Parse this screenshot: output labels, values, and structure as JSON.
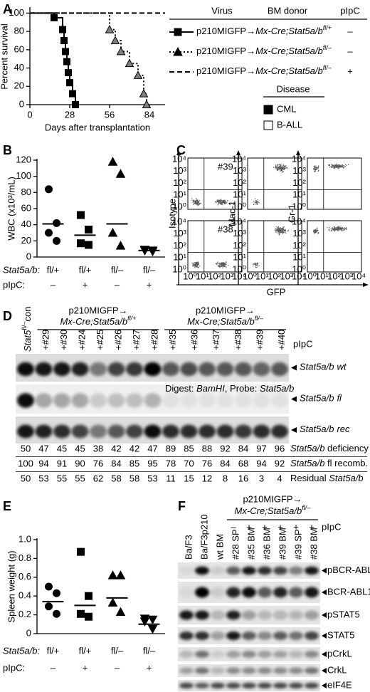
{
  "chart_data": [
    {
      "panel": "A",
      "type": "line",
      "step": true,
      "y_label": "Percent survival",
      "x_label": "Days after transplantation",
      "xlim": [
        0,
        95
      ],
      "xticks": [
        0,
        28,
        56,
        84
      ],
      "ylim": [
        0,
        105
      ],
      "yticks": [
        0,
        20,
        40,
        60,
        80,
        100
      ],
      "legend_headers": [
        "Virus",
        "BM donor",
        "pIpC"
      ],
      "series": [
        {
          "color": "#000000",
          "dash": "solid",
          "marker": "square",
          "marker_fill": "#000000",
          "virus": "p210MIGFP→",
          "donor": "Mx-Cre;Stat5a/b",
          "genotype": "fl/+",
          "pipc": "–",
          "x": [
            0,
            17,
            23,
            24,
            25,
            26,
            27,
            28,
            30,
            32
          ],
          "values": [
            100,
            95,
            82,
            70,
            58,
            47,
            35,
            24,
            12,
            0
          ]
        },
        {
          "color": "#000000",
          "dash": "dotted",
          "marker": "triangle",
          "marker_fill": "#808080",
          "virus": "p210MIGFP→",
          "donor": "Mx-Cre;Stat5a/b",
          "genotype": "fl/–",
          "pipc": "–",
          "x": [
            0,
            56,
            60,
            64,
            70,
            76,
            80,
            82
          ],
          "values": [
            100,
            82,
            70,
            58,
            45,
            32,
            12,
            0
          ]
        },
        {
          "color": "#000000",
          "dash": "dashed",
          "virus": "p210MIGFP→",
          "donor": "Mx-Cre;Stat5a/b",
          "genotype": "fl/–",
          "pipc": "+",
          "x": [
            0,
            95
          ],
          "values": [
            100,
            100
          ]
        }
      ],
      "disease_title": "Disease",
      "diseases": [
        {
          "name": "CML",
          "fill": "#000000"
        },
        {
          "name": "B-ALL",
          "fill": "#ffffff"
        }
      ]
    },
    {
      "panel": "B",
      "type": "scatter",
      "y_label": "WBC (x10³/mL)",
      "ylim": [
        0,
        120
      ],
      "yticks": [
        0,
        20,
        40,
        60,
        80,
        100,
        120
      ],
      "row_labels": [
        "Stat5a/b:",
        "pIpC:"
      ],
      "categories": [
        "fl/+",
        "fl/+",
        "fl/–",
        "fl/–"
      ],
      "treatments": [
        "–",
        "+",
        "–",
        "+"
      ],
      "series": [
        {
          "marker": "circle",
          "values": [
            84,
            42,
            30,
            20
          ],
          "mean": 41
        },
        {
          "marker": "square",
          "values": [
            52,
            34,
            17,
            15
          ],
          "mean": 27
        },
        {
          "marker": "triangle",
          "values": [
            118,
            103,
            30,
            14
          ],
          "mean": 41
        },
        {
          "marker": "down-triangle",
          "values": [
            9,
            8,
            8,
            7
          ],
          "mean": 8
        }
      ]
    },
    {
      "panel": "E",
      "type": "scatter",
      "y_label": "Spleen weight (g)",
      "ylim": [
        0,
        1
      ],
      "yticks": [
        0,
        0.2,
        0.4,
        0.6,
        0.8,
        {
          "value": 1,
          "label": "1.0"
        }
      ],
      "row_labels": [
        "Stat5a/b:",
        "pIpC:"
      ],
      "categories": [
        "fl/+",
        "fl/+",
        "fl/–",
        "fl/–"
      ],
      "treatments": [
        "–",
        "+",
        "–",
        "+"
      ],
      "series": [
        {
          "marker": "circle",
          "values": [
            0.5,
            0.43,
            0.29,
            0.21
          ],
          "mean": 0.34
        },
        {
          "marker": "square",
          "values": [
            0.87,
            0.4,
            0.21,
            0.18
          ],
          "mean": 0.3
        },
        {
          "marker": "triangle",
          "values": [
            0.62,
            0.62,
            0.33,
            0.23
          ],
          "mean": 0.38
        },
        {
          "marker": "down-triangle",
          "values": [
            0.16,
            0.15,
            0.13,
            0.05
          ],
          "mean": 0.1
        }
      ]
    }
  ],
  "panel_c": {
    "panel": "C",
    "samples": [
      "#39",
      "#38"
    ],
    "y_labels": [
      "Isotype",
      "Mac-1",
      "Gr-1"
    ],
    "x_label": "GFP",
    "decades": [
      "10⁰",
      "10¹",
      "10²",
      "10³",
      "10⁴"
    ]
  },
  "panel_d": {
    "panel": "D",
    "control": {
      "gene": "Stat5",
      "genotype": "fl/–",
      "suffix": "con"
    },
    "groups": [
      {
        "virus": "p210MIGFP→",
        "donor": "Mx-Cre;Stat5a/b",
        "genotype": "fl/+",
        "treatment": "+",
        "mice": [
          "#29",
          "#30",
          "#24",
          "#25",
          "#26",
          "#27",
          "#28"
        ]
      },
      {
        "virus": "p210MIGFP→",
        "donor": "Mx-Cre;Stat5a/b",
        "genotype": "fl/–",
        "treatment": "+",
        "mice": [
          "#35",
          "#36",
          "#37",
          "#38",
          "#39",
          "#40"
        ]
      }
    ],
    "treatment_label": "pIpC",
    "bands": [
      {
        "gene": "Stat5a/b",
        "allele": "wt"
      },
      {
        "gene": "Stat5a/b",
        "allele": "fl"
      },
      {
        "gene": "Stat5a/b",
        "allele": "rec"
      }
    ],
    "digest": {
      "prefix": "Digest: ",
      "enzyme": "BamHI",
      "middle": ", Probe: ",
      "probe": "Stat5a/b"
    },
    "rows": [
      {
        "prefix": "",
        "gene": "Stat5a/b",
        "suffix": " deficiency",
        "values": [
          50,
          47,
          45,
          45,
          38,
          42,
          42,
          47,
          89,
          85,
          88,
          92,
          84,
          97,
          96
        ]
      },
      {
        "prefix": "",
        "gene": "Stat5a/b",
        "suffix": " fl recomb.",
        "values": [
          100,
          94,
          91,
          90,
          76,
          84,
          85,
          95,
          78,
          70,
          76,
          84,
          68,
          94,
          92
        ]
      },
      {
        "prefix": "Residual ",
        "gene": "Stat5a/b",
        "suffix": "",
        "values": [
          50,
          53,
          55,
          55,
          62,
          58,
          58,
          53,
          11,
          15,
          12,
          8,
          16,
          3,
          4
        ]
      }
    ]
  },
  "panel_f": {
    "panel": "F",
    "virus": "p210MIGFP→",
    "donor": "Mx-Cre;Stat5a/b",
    "genotype": "fl/–",
    "treatment_label": "pIpC",
    "lanes": [
      {
        "name": "Ba/F3"
      },
      {
        "name": "Ba/F3p210"
      },
      {
        "name": "wt BM"
      },
      {
        "name": "#28 SP",
        "pipc": "–"
      },
      {
        "name": "#35 BM",
        "pipc": "+"
      },
      {
        "name": "#36 BM",
        "pipc": "+"
      },
      {
        "name": "#39 BM",
        "pipc": "+"
      },
      {
        "name": "#39 SP",
        "pipc": "+"
      },
      {
        "name": "#38 BM",
        "pipc": "+"
      }
    ],
    "proteins": [
      "pBCR-ABL1",
      "BCR-ABL1",
      "pSTAT5",
      "STAT5",
      "pCrkL",
      "CrkL",
      "eIF4E"
    ]
  }
}
